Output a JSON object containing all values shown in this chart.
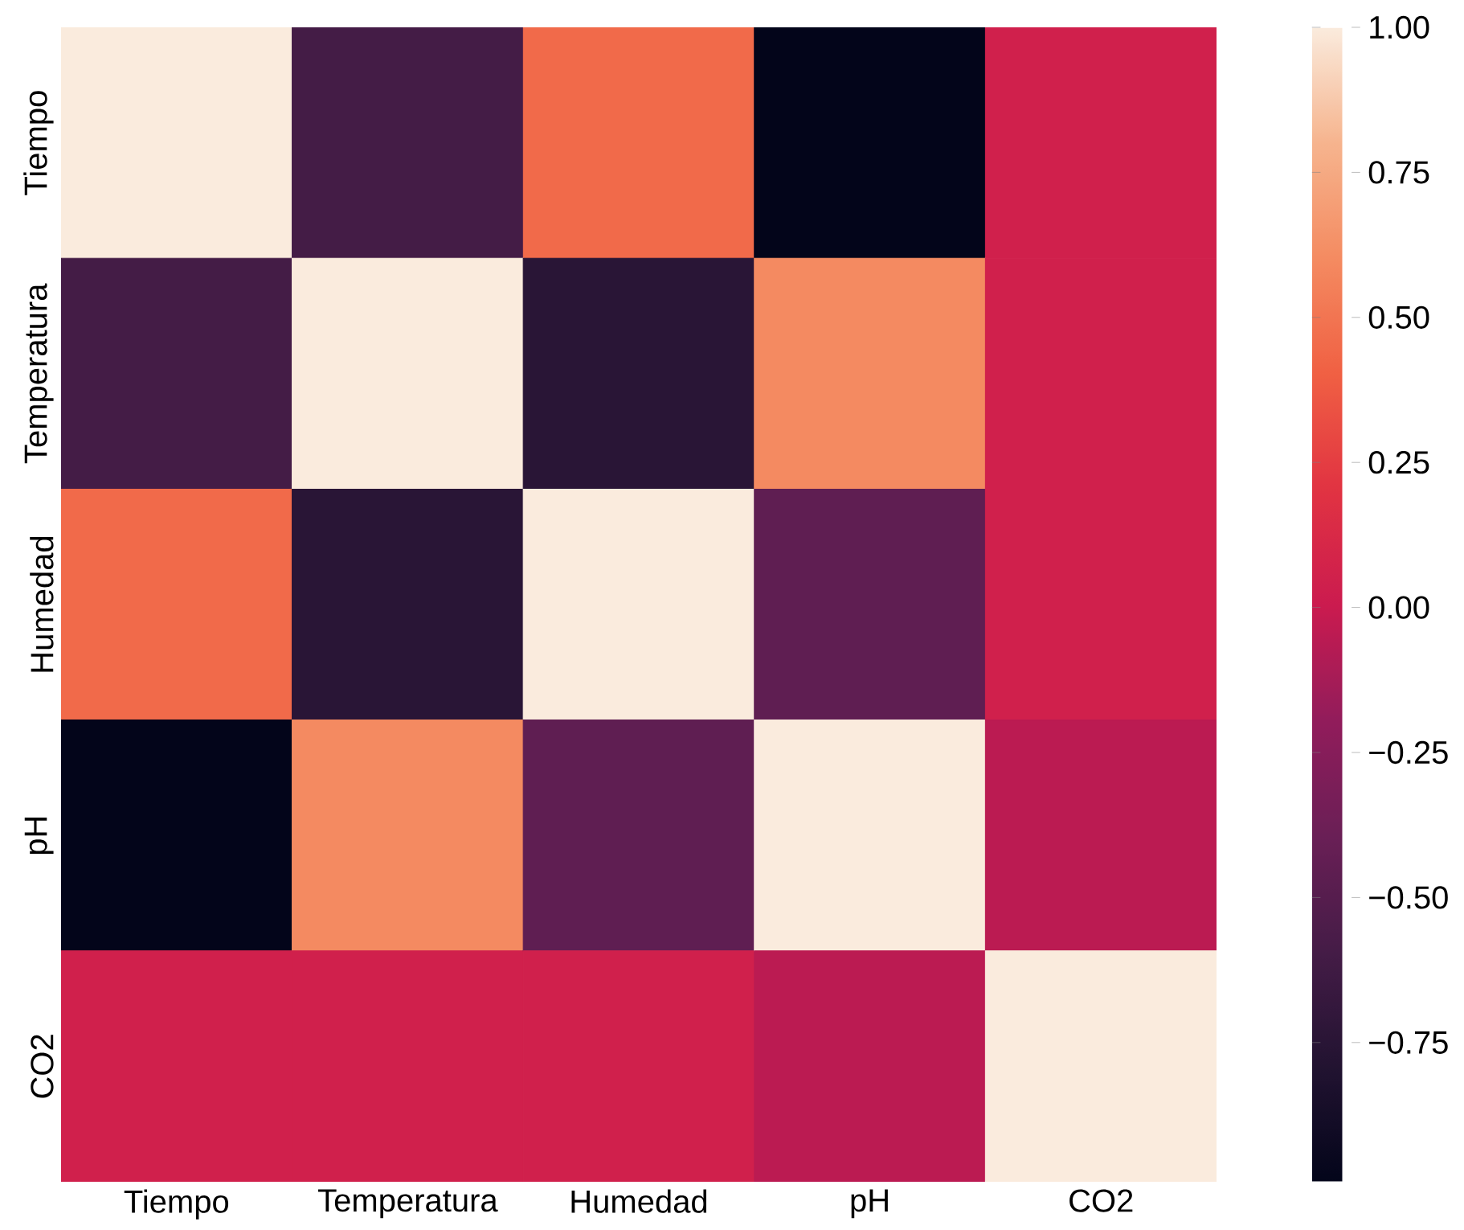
{
  "chart_data": {
    "type": "heatmap",
    "categories": [
      "Tiempo",
      "Temperatura",
      "Humedad",
      "pH",
      "CO2"
    ],
    "y_categories": [
      "Tiempo",
      "Temperatura",
      "Humedad",
      "pH",
      "CO2"
    ],
    "cells": [
      [
        1.0,
        -0.6,
        0.45,
        -0.99,
        0.05
      ],
      [
        -0.6,
        1.0,
        -0.75,
        0.6,
        0.05
      ],
      [
        0.45,
        -0.75,
        1.0,
        -0.45,
        0.05
      ],
      [
        -0.99,
        0.6,
        -0.45,
        1.0,
        -0.05
      ],
      [
        0.05,
        0.05,
        0.05,
        -0.05,
        1.0
      ]
    ],
    "clim": [
      -0.99,
      1.0
    ],
    "cticks": [
      {
        "value": 1.0,
        "label": "1.00"
      },
      {
        "value": 0.75,
        "label": "0.75"
      },
      {
        "value": 0.5,
        "label": "0.50"
      },
      {
        "value": 0.25,
        "label": "0.25"
      },
      {
        "value": 0.0,
        "label": "0.00"
      },
      {
        "value": -0.25,
        "label": "−0.25"
      },
      {
        "value": -0.5,
        "label": "−0.50"
      },
      {
        "value": -0.75,
        "label": "−0.75"
      }
    ]
  }
}
